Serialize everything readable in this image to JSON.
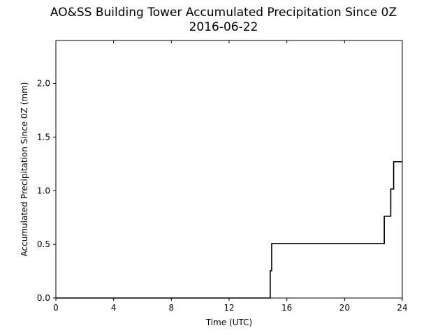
{
  "chart_data": {
    "type": "line",
    "title": "AO&SS Building Tower Accumulated Precipitation Since 0Z",
    "subtitle": "2016-06-22",
    "xlabel": "Time (UTC)",
    "ylabel": "Accumulated Precipitation Since 0Z (mm)",
    "xlim": [
      0,
      24
    ],
    "ylim": [
      0,
      2.4
    ],
    "x_ticks": [
      0,
      4,
      8,
      12,
      16,
      20,
      24
    ],
    "x_tick_labels": [
      "0",
      "4",
      "8",
      "12",
      "16",
      "20",
      "24"
    ],
    "y_ticks": [
      0.0,
      0.5,
      1.0,
      1.5,
      2.0
    ],
    "y_tick_labels": [
      "0.0",
      "0.5",
      "1.0",
      "1.5",
      "2.0"
    ],
    "grid": false,
    "line_color": "#000000",
    "series": [
      {
        "step": true,
        "x": [
          0,
          14.85,
          14.85,
          14.95,
          14.95,
          22.75,
          22.75,
          23.2,
          23.2,
          23.4,
          23.4,
          24
        ],
        "y": [
          0.0,
          0.0,
          0.254,
          0.254,
          0.508,
          0.508,
          0.762,
          0.762,
          1.016,
          1.016,
          1.27,
          1.27
        ]
      }
    ]
  }
}
